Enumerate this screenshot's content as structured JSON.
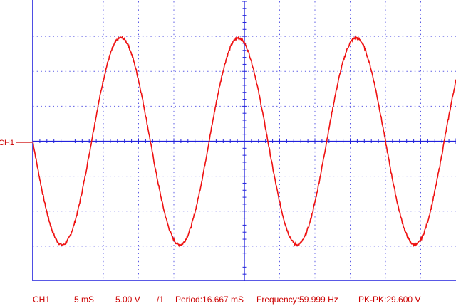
{
  "channel": {
    "label": "CH1",
    "trace_color": "#ee1111",
    "grid_color": "#2222dd",
    "label_color": "#cc0000"
  },
  "status": {
    "channel": "CH1",
    "timebase": "5  mS",
    "volts_per_div": "5.00 V",
    "probe": "/1",
    "period": "Period:16.667 mS",
    "frequency": "Frequency:59.999 Hz",
    "pk_pk": "PK-PK:29.600 V"
  },
  "chart_data": {
    "type": "line",
    "title": "",
    "xlabel": "",
    "ylabel": "",
    "x_unit": "ms",
    "y_unit": "V",
    "xlim": [
      0,
      60
    ],
    "ylim": [
      -20,
      20
    ],
    "grid": true,
    "series": [
      {
        "waveform": "sine",
        "amplitude": 14.8,
        "pk_pk": 29.6,
        "frequency_hz": 59.999,
        "period_ms": 16.667,
        "phase": "inverted",
        "x": [
          0,
          2.083,
          4.167,
          6.25,
          8.333,
          10.417,
          12.5,
          14.583,
          16.667,
          18.75,
          20.833,
          22.917,
          25,
          27.083,
          29.167,
          31.25,
          33.333,
          35.417,
          37.5,
          39.583,
          41.667,
          43.75,
          45.833,
          47.917,
          50,
          52.083,
          54.167,
          56.25,
          58.333,
          60
        ],
        "y": [
          0,
          -10.5,
          -14.8,
          -10.5,
          0,
          10.5,
          14.8,
          10.5,
          0,
          -10.5,
          -14.8,
          -10.5,
          0,
          10.5,
          14.8,
          10.5,
          0,
          -10.5,
          -14.8,
          -10.5,
          0,
          10.5,
          14.8,
          10.5,
          0,
          -10.5,
          -14.8,
          -10.5,
          0,
          8.7
        ]
      }
    ]
  }
}
